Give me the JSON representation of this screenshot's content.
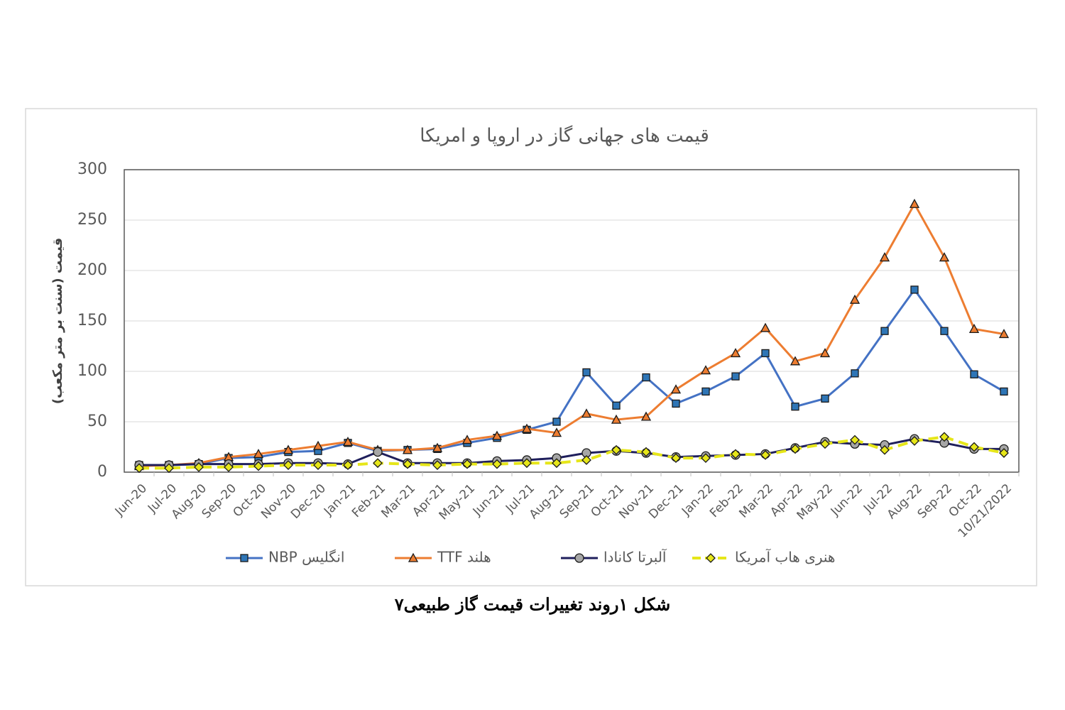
{
  "chart_data": {
    "type": "line",
    "title": "قیمت های جهانی گاز در اروپا و امریکا",
    "y_label": "قیمت (سنت بر متر مکعب)",
    "caption": "شکل ۱روند تغییرات قیمت گاز طبیعی۷",
    "categories": [
      "Jun-20",
      "Jul-20",
      "Aug-20",
      "Sep-20",
      "Oct-20",
      "Nov-20",
      "Dec-20",
      "Jan-21",
      "Feb-21",
      "Mar-21",
      "Apr-21",
      "May-21",
      "Jun-21",
      "Jul-21",
      "Aug-21",
      "Sep-21",
      "Oct-21",
      "Nov-21",
      "Dec-21",
      "Jan-22",
      "Feb-22",
      "Mar-22",
      "Apr-22",
      "May-22",
      "Jun-22",
      "Jul-22",
      "Aug-22",
      "Sep-22",
      "Oct-22",
      "10/21/2022"
    ],
    "series": [
      {
        "name": "NBP انگلیس",
        "color": "#4472c4",
        "marker": "square",
        "marker_color": "#2e75b6",
        "values": [
          7,
          7,
          8,
          14,
          15,
          20,
          21,
          29,
          21,
          22,
          23,
          29,
          34,
          42,
          50,
          99,
          66,
          94,
          68,
          80,
          95,
          118,
          65,
          73,
          98,
          140,
          181,
          140,
          97,
          80
        ]
      },
      {
        "name": "TTF هلند",
        "color": "#ed7d31",
        "marker": "triangle",
        "marker_color": "#ed7d31",
        "values": [
          6,
          7,
          9,
          15,
          18,
          22,
          26,
          30,
          22,
          22,
          24,
          32,
          36,
          43,
          39,
          58,
          52,
          55,
          82,
          101,
          118,
          143,
          110,
          118,
          171,
          213,
          266,
          213,
          142,
          137
        ]
      },
      {
        "name": "آلبرتا کانادا",
        "color": "#1f1f5c",
        "marker": "circle",
        "marker_color": "#a6a6a6",
        "values": [
          7,
          7,
          8,
          8,
          8,
          9,
          9,
          8,
          20,
          9,
          9,
          9,
          11,
          12,
          14,
          19,
          21,
          19,
          15,
          16,
          17,
          18,
          24,
          30,
          28,
          27,
          33,
          29,
          23,
          23
        ]
      },
      {
        "name": "هنری هاب آمریکا",
        "color": "#e6e619",
        "marker": "diamond",
        "marker_color": "#e6e619",
        "dashed": true,
        "values": [
          4,
          4,
          5,
          5,
          6,
          7,
          7,
          7,
          9,
          8,
          7,
          8,
          8,
          9,
          9,
          12,
          22,
          20,
          14,
          14,
          18,
          17,
          23,
          28,
          32,
          22,
          31,
          35,
          25,
          19
        ]
      }
    ],
    "ylim": [
      0,
      300
    ],
    "yticks": [
      0,
      50,
      100,
      150,
      200,
      250,
      300
    ],
    "grid": true
  }
}
